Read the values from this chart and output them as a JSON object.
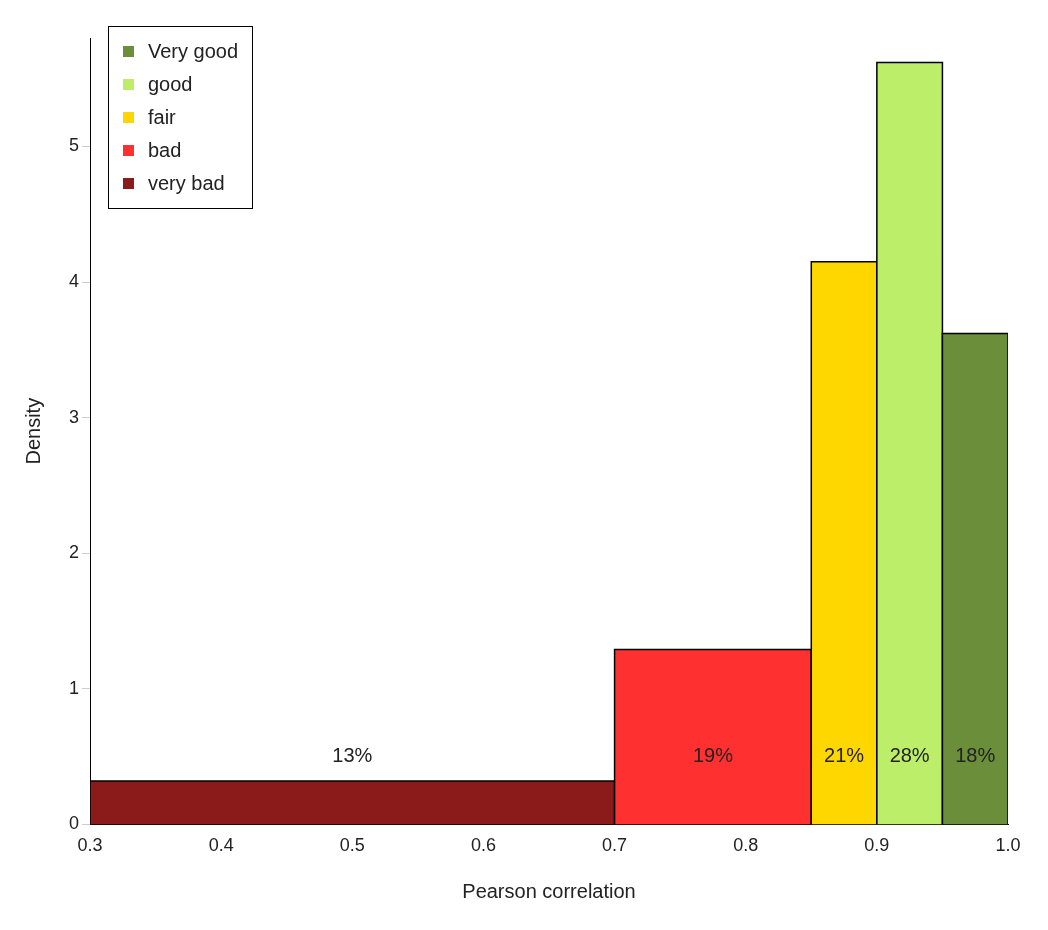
{
  "chart_data": {
    "type": "histogram",
    "xlabel": "Pearson correlation",
    "ylabel": "Density",
    "bins": [
      0.3,
      0.7,
      0.85,
      0.9,
      0.95,
      1.0
    ],
    "series": [
      {
        "name": "Very good",
        "color": "#6b8e3a",
        "values": [
          null,
          null,
          null,
          null,
          3.62
        ]
      },
      {
        "name": "good",
        "color": "#bdee6a",
        "values": [
          null,
          null,
          null,
          5.62,
          null
        ]
      },
      {
        "name": "fair",
        "color": "#ffd700",
        "values": [
          null,
          null,
          4.15,
          null,
          null
        ]
      },
      {
        "name": "bad",
        "color": "#ff3030",
        "values": [
          null,
          1.29,
          null,
          null,
          null
        ]
      },
      {
        "name": "very bad",
        "color": "#8b1a1a",
        "values": [
          0.32,
          null,
          null,
          null,
          null
        ]
      }
    ],
    "annotations": [
      "13%",
      "19%",
      "21%",
      "28%",
      "18%"
    ],
    "xlim": [
      0.3,
      1.0
    ],
    "xticks": [
      {
        "value": 0.3,
        "label": "0.3"
      },
      {
        "value": 0.4,
        "label": "0.4"
      },
      {
        "value": 0.5,
        "label": "0.5"
      },
      {
        "value": 0.6,
        "label": "0.6"
      },
      {
        "value": 0.7,
        "label": "0.7"
      },
      {
        "value": 0.8,
        "label": "0.8"
      },
      {
        "value": 0.9,
        "label": "0.9"
      },
      {
        "value": 1.0,
        "label": "1.0"
      }
    ],
    "ylim": [
      0,
      5.8
    ],
    "yticks": [
      0,
      1,
      2,
      3,
      4,
      5
    ],
    "grid": false,
    "legend": "top left"
  }
}
